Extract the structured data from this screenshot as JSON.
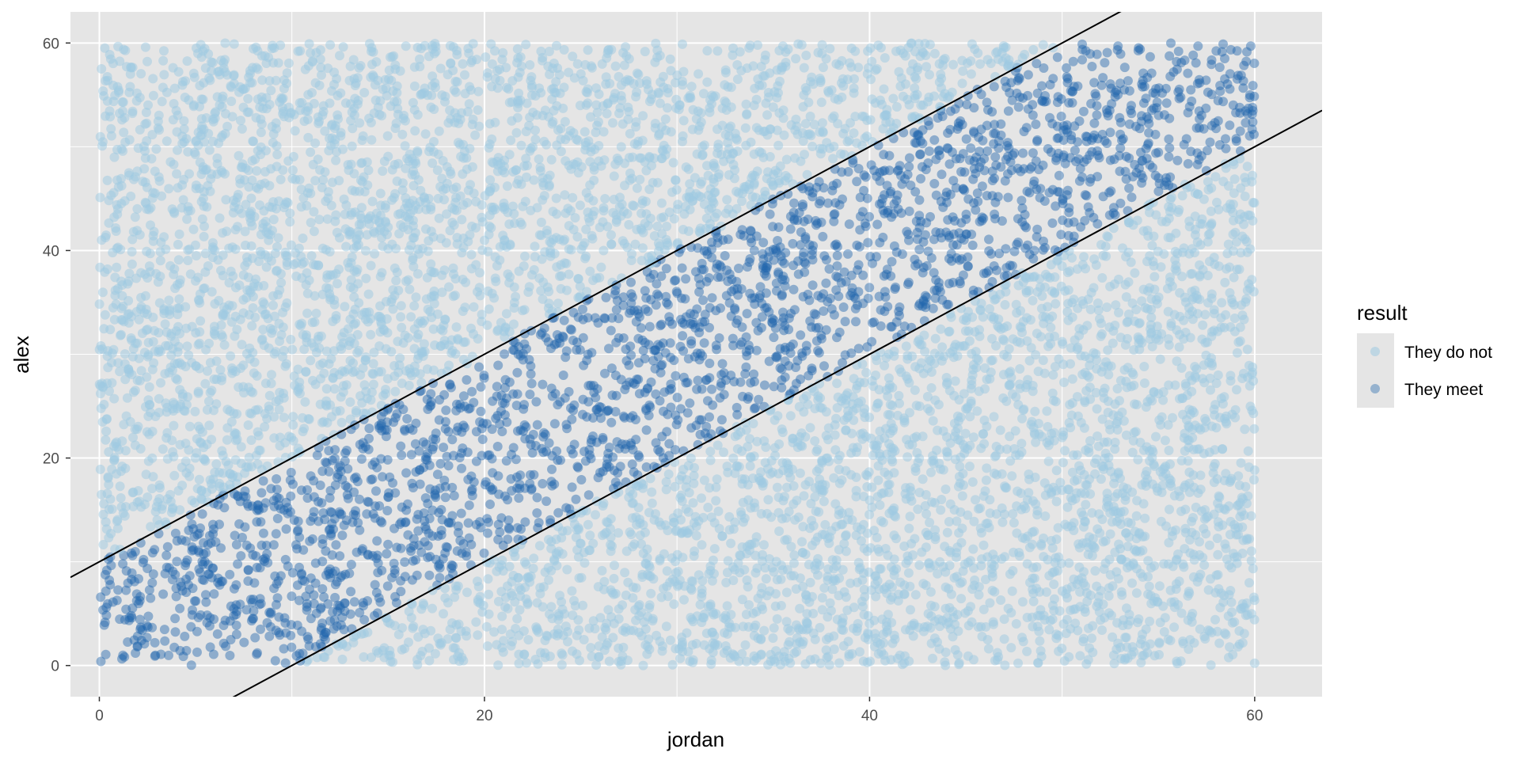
{
  "chart_data": {
    "type": "scatter",
    "xlabel": "jordan",
    "ylabel": "alex",
    "xlim": [
      -1.5,
      63.5
    ],
    "ylim": [
      -3,
      63
    ],
    "x_ticks": [
      0,
      20,
      40,
      60
    ],
    "y_ticks": [
      0,
      20,
      40,
      60
    ],
    "grid": true,
    "legend": {
      "title": "result",
      "position": "right",
      "entries": [
        {
          "label": "They do not",
          "color": "#9ecae1"
        },
        {
          "label": "They meet",
          "color": "#2166ac"
        }
      ]
    },
    "series": [
      {
        "name": "They do not",
        "color": "#9ecae1",
        "region": "uniform square [0,60]x[0,60] where |alex - jordan| > 10"
      },
      {
        "name": "They meet",
        "color": "#2166ac",
        "region": "uniform square [0,60]x[0,60] where |alex - jordan| <= 10"
      }
    ],
    "reference_lines": [
      {
        "equation": "alex = jordan + 10",
        "intercept": 10,
        "slope": 1,
        "color": "#000000"
      },
      {
        "equation": "alex = jordan - 10",
        "intercept": -10,
        "slope": 1,
        "color": "#000000"
      }
    ]
  },
  "colors": {
    "panel_background": "#e5e5e5",
    "grid": "#ffffff",
    "no_meet": "#9ecae1",
    "meet": "#2166ac",
    "line": "#000000"
  }
}
